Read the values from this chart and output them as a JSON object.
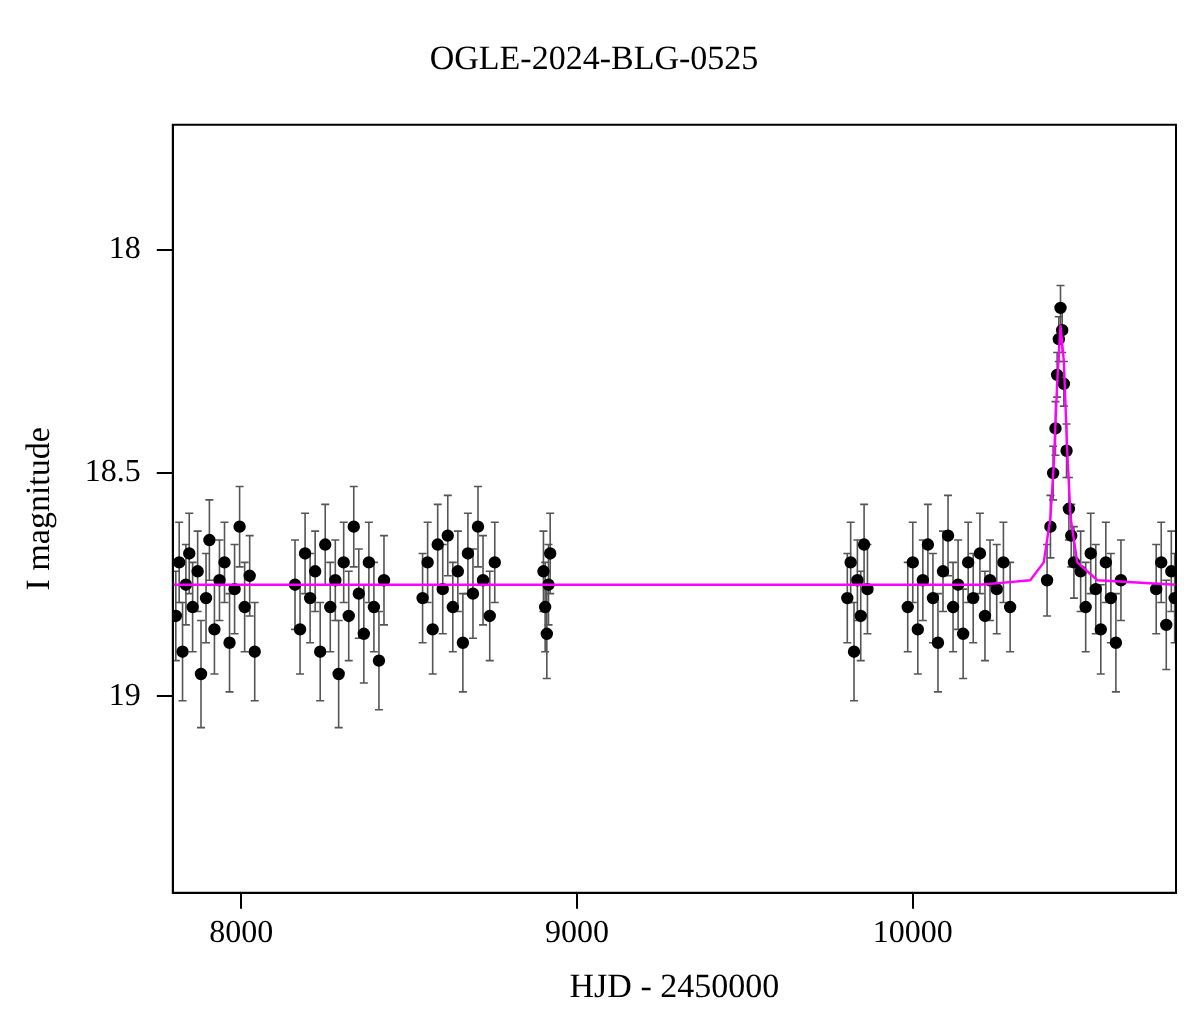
{
  "chart_data": {
    "type": "scatter",
    "title": "OGLE-2024-BLG-0525",
    "xlabel": "HJD - 2450000",
    "ylabel": "I magnitude",
    "xlim": [
      7796,
      10784
    ],
    "ylim": [
      19.44,
      17.72
    ],
    "xticks": [
      8000,
      9000,
      10000
    ],
    "yticks": [
      18,
      18.5,
      19
    ],
    "grid": false,
    "legend": false,
    "series": [
      {
        "type": "scatter",
        "color": "#000000",
        "marker": "circle",
        "x": [
          7805,
          7815,
          7825,
          7835,
          7845,
          7855,
          7870,
          7880,
          7895,
          7905,
          7920,
          7935,
          7950,
          7965,
          7980,
          7995,
          8010,
          8025,
          8040,
          8160,
          8175,
          8190,
          8205,
          8220,
          8235,
          8250,
          8265,
          8280,
          8290,
          8305,
          8320,
          8335,
          8350,
          8365,
          8380,
          8395,
          8410,
          8425,
          8540,
          8555,
          8570,
          8585,
          8600,
          8615,
          8630,
          8645,
          8660,
          8675,
          8690,
          8705,
          8720,
          8740,
          8755,
          8900,
          8905,
          8910,
          8915,
          8920,
          9805,
          9815,
          9825,
          9835,
          9845,
          9855,
          9865,
          9985,
          10000,
          10015,
          10030,
          10045,
          10060,
          10075,
          10090,
          10105,
          10120,
          10135,
          10150,
          10165,
          10180,
          10200,
          10215,
          10230,
          10250,
          10270,
          10290,
          10400,
          10410,
          10418,
          10425,
          10430,
          10435,
          10440,
          10445,
          10450,
          10458,
          10465,
          10472,
          10480,
          10500,
          10515,
          10530,
          10545,
          10560,
          10575,
          10590,
          10605,
          10620,
          10725,
          10740,
          10755,
          10770,
          10780
        ],
        "values": [
          18.82,
          18.7,
          18.9,
          18.75,
          18.68,
          18.8,
          18.72,
          18.95,
          18.78,
          18.65,
          18.85,
          18.74,
          18.7,
          18.88,
          18.76,
          18.62,
          18.8,
          18.73,
          18.9,
          18.75,
          18.85,
          18.68,
          18.78,
          18.72,
          18.9,
          18.66,
          18.8,
          18.74,
          18.95,
          18.7,
          18.82,
          18.62,
          18.77,
          18.86,
          18.7,
          18.8,
          18.92,
          18.74,
          18.78,
          18.7,
          18.85,
          18.66,
          18.76,
          18.64,
          18.8,
          18.72,
          18.88,
          18.68,
          18.77,
          18.62,
          18.74,
          18.82,
          18.7,
          18.72,
          18.8,
          18.86,
          18.75,
          18.68,
          18.78,
          18.7,
          18.9,
          18.74,
          18.82,
          18.66,
          18.76,
          18.8,
          18.7,
          18.85,
          18.74,
          18.66,
          18.78,
          18.88,
          18.72,
          18.64,
          18.8,
          18.75,
          18.86,
          18.7,
          18.78,
          18.68,
          18.82,
          18.74,
          18.76,
          18.7,
          18.8,
          18.74,
          18.62,
          18.5,
          18.4,
          18.28,
          18.2,
          18.13,
          18.18,
          18.3,
          18.45,
          18.58,
          18.64,
          18.7,
          18.72,
          18.8,
          18.68,
          18.76,
          18.85,
          18.7,
          18.78,
          18.88,
          18.74,
          18.76,
          18.7,
          18.84,
          18.72,
          18.78
        ],
        "errors": [
          0.1,
          0.09,
          0.11,
          0.09,
          0.09,
          0.1,
          0.09,
          0.12,
          0.1,
          0.09,
          0.1,
          0.09,
          0.09,
          0.11,
          0.1,
          0.09,
          0.1,
          0.09,
          0.11,
          0.1,
          0.1,
          0.09,
          0.1,
          0.09,
          0.11,
          0.09,
          0.1,
          0.09,
          0.12,
          0.09,
          0.1,
          0.09,
          0.1,
          0.11,
          0.09,
          0.1,
          0.11,
          0.1,
          0.1,
          0.09,
          0.1,
          0.09,
          0.1,
          0.09,
          0.1,
          0.09,
          0.11,
          0.09,
          0.1,
          0.09,
          0.1,
          0.1,
          0.09,
          0.09,
          0.1,
          0.1,
          0.09,
          0.09,
          0.1,
          0.09,
          0.11,
          0.09,
          0.1,
          0.09,
          0.1,
          0.1,
          0.09,
          0.1,
          0.09,
          0.09,
          0.1,
          0.11,
          0.09,
          0.09,
          0.1,
          0.1,
          0.1,
          0.09,
          0.1,
          0.09,
          0.1,
          0.09,
          0.1,
          0.09,
          0.1,
          0.08,
          0.07,
          0.06,
          0.06,
          0.05,
          0.05,
          0.05,
          0.05,
          0.05,
          0.06,
          0.07,
          0.07,
          0.08,
          0.09,
          0.1,
          0.09,
          0.1,
          0.1,
          0.09,
          0.1,
          0.11,
          0.09,
          0.1,
          0.09,
          0.1,
          0.09,
          0.1
        ]
      },
      {
        "type": "line",
        "color": "#ff00ff",
        "marker": "none",
        "x": [
          7796,
          10200,
          10350,
          10390,
          10410,
          10420,
          10430,
          10440,
          10450,
          10460,
          10470,
          10490,
          10550,
          10784
        ],
        "values": [
          18.75,
          18.75,
          18.74,
          18.7,
          18.6,
          18.48,
          18.3,
          18.17,
          18.25,
          18.45,
          18.6,
          18.7,
          18.74,
          18.75
        ]
      }
    ]
  }
}
